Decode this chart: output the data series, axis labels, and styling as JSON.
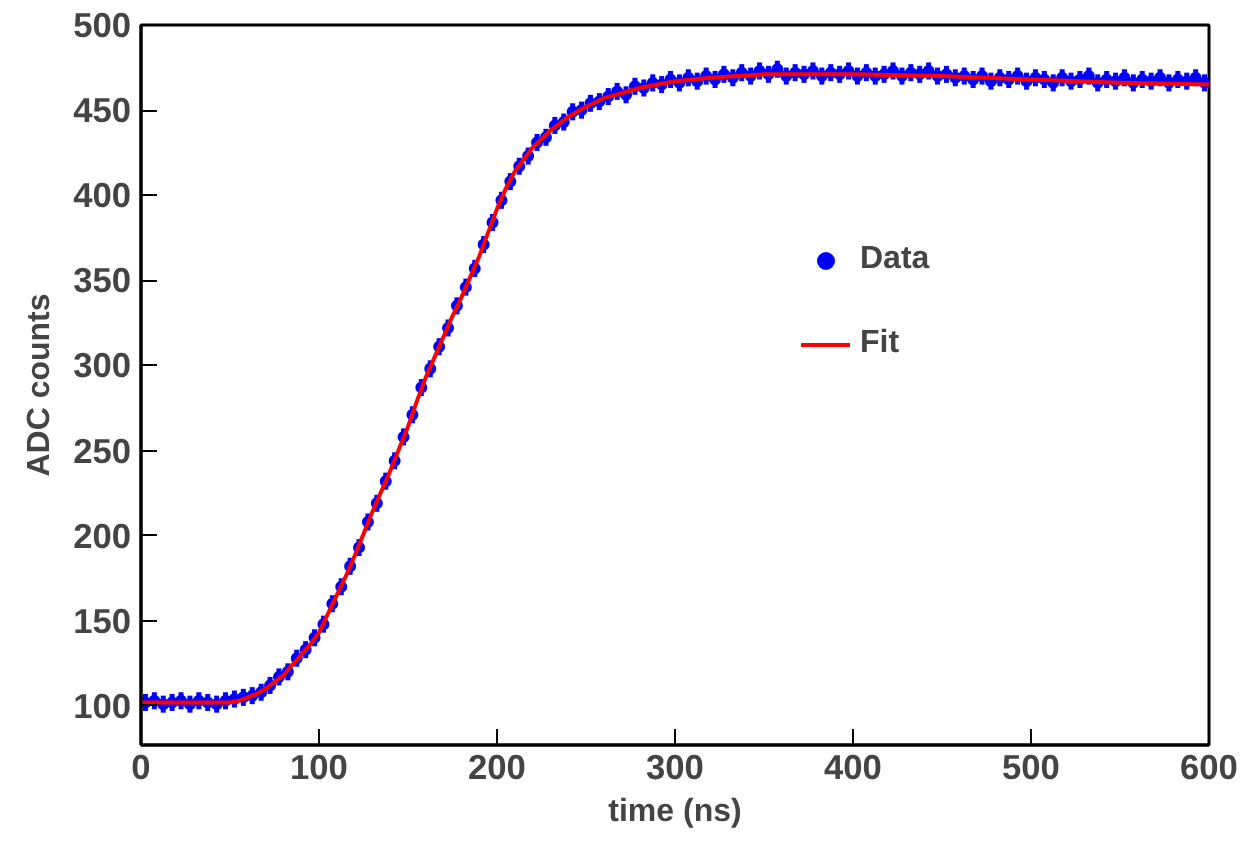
{
  "chart_data": {
    "type": "scatter",
    "xlabel": "time (ns)",
    "ylabel": "ADC counts",
    "xlim": [
      0,
      600
    ],
    "ylim": [
      77,
      500
    ],
    "xticks": [
      0,
      100,
      200,
      300,
      400,
      500,
      600
    ],
    "yticks": [
      100,
      150,
      200,
      250,
      300,
      350,
      400,
      450,
      500
    ],
    "grid": false,
    "legend": "right",
    "series": [
      {
        "name": "Data",
        "marker": "circle",
        "color": "#0000ff",
        "x": [
          2.5,
          7.5,
          12.5,
          17.5,
          22.5,
          27.5,
          32.5,
          37.5,
          42.5,
          47.5,
          52.5,
          57.5,
          62.5,
          67.5,
          72.5,
          77.5,
          82.5,
          87.5,
          92.5,
          97.5,
          102.5,
          107.5,
          112.5,
          117.5,
          122.5,
          127.5,
          132.5,
          137.5,
          142.5,
          147.5,
          152.5,
          157.5,
          162.5,
          167.5,
          172.5,
          177.5,
          182.5,
          187.5,
          192.5,
          197.5,
          202.5,
          207.5,
          212.5,
          217.5,
          222.5,
          227.5,
          232.5,
          237.5,
          242.5,
          247.5,
          252.5,
          257.5,
          262.5,
          267.5,
          272.5,
          277.5,
          282.5,
          287.5,
          292.5,
          297.5,
          302.5,
          307.5,
          312.5,
          317.5,
          322.5,
          327.5,
          332.5,
          337.5,
          342.5,
          347.5,
          352.5,
          357.5,
          362.5,
          367.5,
          372.5,
          377.5,
          382.5,
          387.5,
          392.5,
          397.5,
          402.5,
          407.5,
          412.5,
          417.5,
          422.5,
          427.5,
          432.5,
          437.5,
          442.5,
          447.5,
          452.5,
          457.5,
          462.5,
          467.5,
          472.5,
          477.5,
          482.5,
          487.5,
          492.5,
          497.5,
          502.5,
          507.5,
          512.5,
          517.5,
          522.5,
          527.5,
          532.5,
          537.5,
          542.5,
          547.5,
          552.5,
          557.5,
          562.5,
          567.5,
          572.5,
          577.5,
          582.5,
          587.5,
          592.5,
          597.5
        ],
        "values": [
          102,
          103,
          101,
          102,
          103,
          101,
          103,
          102,
          101,
          103,
          104,
          105,
          106,
          108,
          112,
          117,
          120,
          128,
          133,
          140,
          148,
          160,
          170,
          182,
          193,
          208,
          219,
          232,
          244,
          258,
          271,
          287,
          298,
          311,
          322,
          335,
          346,
          357,
          371,
          384,
          397,
          408,
          417,
          423,
          431,
          434,
          441,
          443,
          449,
          450,
          454,
          455,
          458,
          461,
          459,
          464,
          463,
          466,
          465,
          468,
          466,
          469,
          467,
          470,
          468,
          471,
          469,
          472,
          470,
          473,
          471,
          474,
          470,
          472,
          471,
          473,
          470,
          472,
          471,
          473,
          470,
          472,
          470,
          471,
          473,
          470,
          472,
          471,
          473,
          470,
          471,
          469,
          470,
          468,
          470,
          467,
          469,
          468,
          470,
          467,
          469,
          468,
          466,
          469,
          467,
          468,
          470,
          466,
          468,
          467,
          469,
          466,
          468,
          467,
          469,
          466,
          468,
          467,
          469,
          466
        ],
        "errors": [
          5,
          5,
          5,
          5,
          5,
          5,
          5,
          5,
          5,
          5,
          5,
          5,
          5,
          5,
          5,
          5,
          5,
          5,
          5,
          5,
          5,
          5,
          5,
          5,
          5,
          5,
          5,
          5,
          5,
          5,
          5,
          5,
          5,
          5,
          5,
          5,
          5,
          5,
          5,
          5,
          5,
          5,
          5,
          5,
          5,
          5,
          5,
          5,
          5,
          5,
          5,
          5,
          5,
          5,
          5,
          5,
          5,
          5,
          5,
          5,
          5,
          5,
          5,
          5,
          5,
          5,
          5,
          5,
          5,
          5,
          5,
          5,
          5,
          5,
          5,
          5,
          5,
          5,
          5,
          5,
          5,
          5,
          5,
          5,
          5,
          5,
          5,
          5,
          5,
          5,
          5,
          5,
          5,
          5,
          5,
          5,
          5,
          5,
          5,
          5,
          5,
          5,
          5,
          5,
          5,
          5,
          5,
          5,
          5,
          5,
          5,
          5,
          5,
          5,
          5,
          5,
          5,
          5,
          5,
          5
        ]
      },
      {
        "name": "Fit",
        "type": "line",
        "color": "#ff0000",
        "line_style": "solid",
        "x": [
          0,
          50,
          55,
          60,
          65,
          70,
          75,
          80,
          85,
          90,
          95,
          100,
          105,
          110,
          115,
          120,
          125,
          130,
          135,
          140,
          145,
          150,
          155,
          160,
          165,
          170,
          175,
          180,
          185,
          190,
          195,
          200,
          205,
          210,
          215,
          220,
          225,
          230,
          235,
          240,
          245,
          250,
          260,
          270,
          280,
          290,
          300,
          320,
          350,
          400,
          450,
          500,
          550,
          600
        ],
        "values": [
          102,
          102,
          103,
          105,
          107,
          110,
          114,
          118,
          124,
          130,
          136,
          143,
          154,
          165,
          176,
          188,
          201,
          214,
          226,
          238,
          251,
          264,
          279,
          293,
          305,
          317,
          329,
          340,
          352,
          364,
          378,
          392,
          404,
          414,
          421,
          428,
          433,
          438,
          442,
          446,
          449,
          452,
          457,
          460,
          463,
          465,
          467,
          469,
          471,
          471,
          470,
          468,
          466,
          465
        ]
      }
    ]
  }
}
